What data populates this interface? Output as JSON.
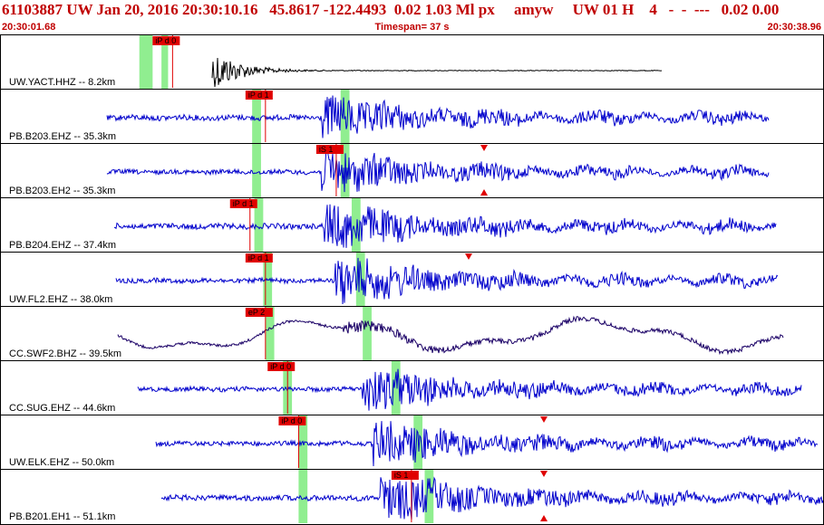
{
  "header": {
    "event_line": "61103887 UW Jan 20, 2016 20:30:10.16   45.8617 -122.4493  0.02 1.03 Ml px     amyw     UW 01 H    4   -  -  ---   0.02 0.00",
    "start_time": "20:30:01.68",
    "timespan": "Timespan=  37 s",
    "end_time": "20:30:38.96"
  },
  "colors": {
    "title": "#c00000",
    "trace": "#0000cc",
    "trace_dark": "#000000",
    "trace_purple": "#1a0066",
    "pick": "#e00000",
    "window": "#90ee90"
  },
  "traces": [
    {
      "label": "UW.YACT.HHZ -- 8.2km",
      "picks": [
        {
          "name": "iP d 0",
          "t": 6.9
        }
      ],
      "windows": [
        [
          6.3,
          6.9
        ],
        [
          7.3,
          7.6
        ]
      ]
    },
    {
      "label": "PB.B203.EHZ -- 35.3km",
      "picks": [
        {
          "name": "iP d 1",
          "t": 11.1
        }
      ],
      "windows": [
        [
          11.4,
          11.8
        ],
        [
          15.4,
          15.8
        ]
      ]
    },
    {
      "label": "PB.B203.EH2 -- 35.3km",
      "picks": [
        {
          "name": "iS 1",
          "t": 14.3
        }
      ],
      "windows": [
        [
          11.4,
          11.8
        ],
        [
          15.4,
          15.8
        ]
      ]
    },
    {
      "label": "PB.B204.EHZ -- 37.4km",
      "picks": [
        {
          "name": "iP d 1",
          "t": 10.4
        }
      ],
      "windows": [
        [
          11.5,
          11.9
        ],
        [
          15.9,
          16.3
        ]
      ]
    },
    {
      "label": "UW.FL2.EHZ -- 38.0km",
      "picks": [
        {
          "name": "iP d 1",
          "t": 11.1
        }
      ],
      "windows": [
        [
          11.9,
          12.3
        ],
        [
          16.1,
          16.5
        ]
      ]
    },
    {
      "label": "CC.SWF2.BHZ -- 39.5km",
      "picks": [
        {
          "name": "eP 2",
          "t": 11.1
        }
      ],
      "windows": [
        [
          12.0,
          12.4
        ],
        [
          16.4,
          16.8
        ]
      ]
    },
    {
      "label": "CC.SUG.EHZ -- 44.6km",
      "picks": [
        {
          "name": "iP d 0",
          "t": 12.1
        }
      ],
      "windows": [
        [
          12.8,
          13.2
        ],
        [
          17.7,
          18.1
        ]
      ]
    },
    {
      "label": "UW.ELK.EHZ -- 50.0km",
      "picks": [
        {
          "name": "iP d 0",
          "t": 12.6
        }
      ],
      "windows": [
        [
          13.5,
          13.9
        ],
        [
          18.7,
          19.1
        ]
      ]
    },
    {
      "label": "PB.B201.EH1 -- 51.1km",
      "picks": [
        {
          "name": "iS 1",
          "t": 17.7
        }
      ],
      "windows": [
        [
          13.5,
          13.9
        ],
        [
          19.2,
          19.6
        ]
      ]
    }
  ]
}
